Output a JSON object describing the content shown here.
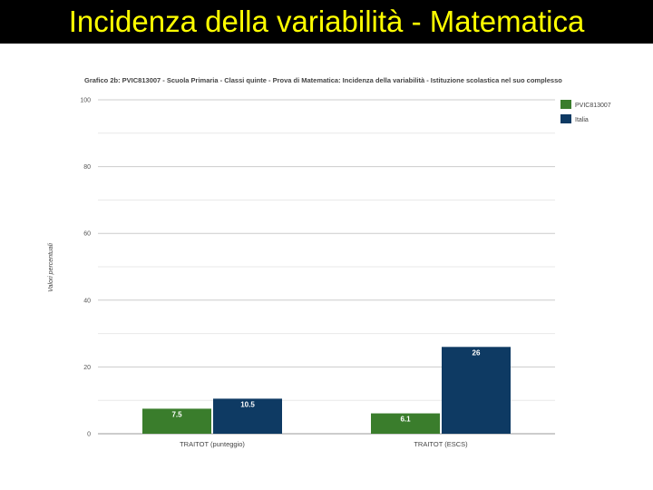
{
  "slide": {
    "title": "Incidenza della variabilità - Matematica"
  },
  "colors": {
    "title_bar": "#000000",
    "title_text": "#ffff00",
    "series_school": "#3a7d2c",
    "series_italy": "#0e3a63"
  },
  "chart_data": {
    "type": "bar",
    "title": "Grafico 2b: PVIC813007 - Scuola Primaria - Classi quinte - Prova di Matematica: Incidenza della variabilità - Istituzione scolastica nel suo complesso",
    "xlabel": "",
    "ylabel": "Valori percentuali",
    "categories": [
      "TRAITOT (punteggio)",
      "TRAITOT (ESCS)"
    ],
    "series": [
      {
        "name": "PVIC813007",
        "values": [
          7.5,
          6.1
        ],
        "labels": [
          "7.5",
          "6.1"
        ]
      },
      {
        "name": "Italia",
        "values": [
          10.5,
          26
        ],
        "labels": [
          "10.5",
          "26"
        ]
      }
    ],
    "ylim": [
      0,
      100
    ],
    "yticks": [
      0,
      20,
      40,
      60,
      80,
      100
    ],
    "grid": true,
    "legend_position": "top-right"
  }
}
